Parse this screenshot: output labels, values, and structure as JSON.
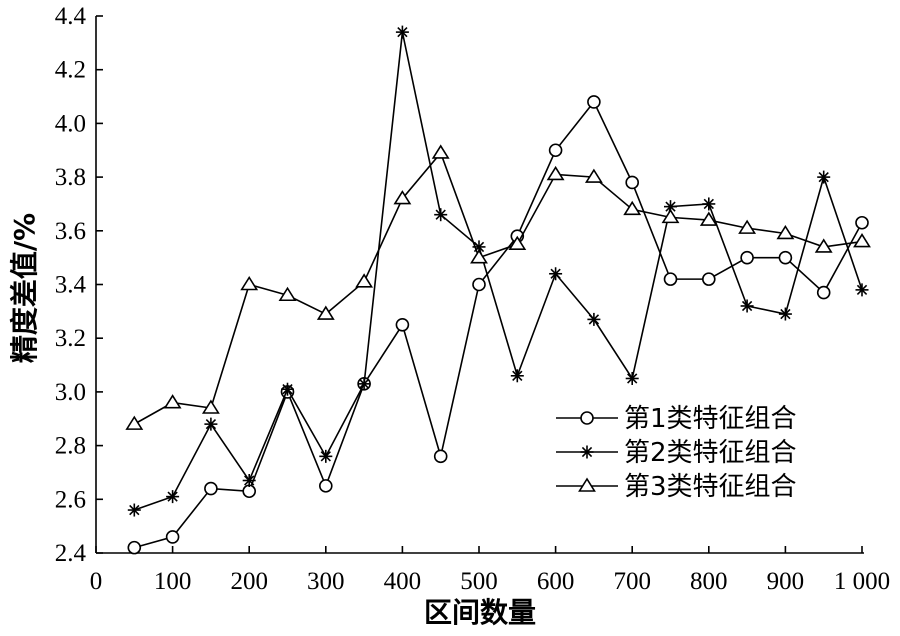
{
  "chart_data": {
    "type": "line",
    "xlabel": "区间数量",
    "ylabel": "精度差值/%",
    "xlim": [
      0,
      1000
    ],
    "ylim": [
      2.4,
      4.4
    ],
    "x_ticks": [
      0,
      100,
      200,
      300,
      400,
      500,
      600,
      700,
      800,
      900,
      1000
    ],
    "x_tick_labels": [
      "0",
      "100",
      "200",
      "300",
      "400",
      "500",
      "600",
      "700",
      "800",
      "900",
      "1 000"
    ],
    "y_ticks": [
      2.4,
      2.6,
      2.8,
      3.0,
      3.2,
      3.4,
      3.6,
      3.8,
      4.0,
      4.2,
      4.4
    ],
    "y_tick_labels": [
      "2.4",
      "2.6",
      "2.8",
      "3.0",
      "3.2",
      "3.4",
      "3.6",
      "3.8",
      "4.0",
      "4.2",
      "4.4"
    ],
    "x": [
      50,
      100,
      150,
      200,
      250,
      300,
      350,
      400,
      450,
      500,
      550,
      600,
      650,
      700,
      750,
      800,
      850,
      900,
      950,
      1000
    ],
    "series": [
      {
        "name": "第1类特征组合",
        "marker": "circle",
        "values": [
          2.42,
          2.46,
          2.64,
          2.63,
          3.0,
          2.65,
          3.03,
          3.25,
          2.76,
          3.4,
          3.58,
          3.9,
          4.08,
          3.78,
          3.42,
          3.42,
          3.5,
          3.5,
          3.37,
          3.63
        ]
      },
      {
        "name": "第2类特征组合",
        "marker": "star",
        "values": [
          2.56,
          2.61,
          2.88,
          2.67,
          3.01,
          2.76,
          3.03,
          4.34,
          3.66,
          3.54,
          3.06,
          3.44,
          3.27,
          3.05,
          3.69,
          3.7,
          3.32,
          3.29,
          3.8,
          3.38
        ]
      },
      {
        "name": "第3类特征组合",
        "marker": "triangle",
        "values": [
          2.88,
          2.96,
          2.94,
          3.4,
          3.36,
          3.29,
          3.41,
          3.72,
          3.89,
          3.5,
          3.55,
          3.81,
          3.8,
          3.68,
          3.65,
          3.64,
          3.61,
          3.59,
          3.54,
          3.56
        ]
      }
    ],
    "legend_position": "lower-right",
    "grid": false
  }
}
